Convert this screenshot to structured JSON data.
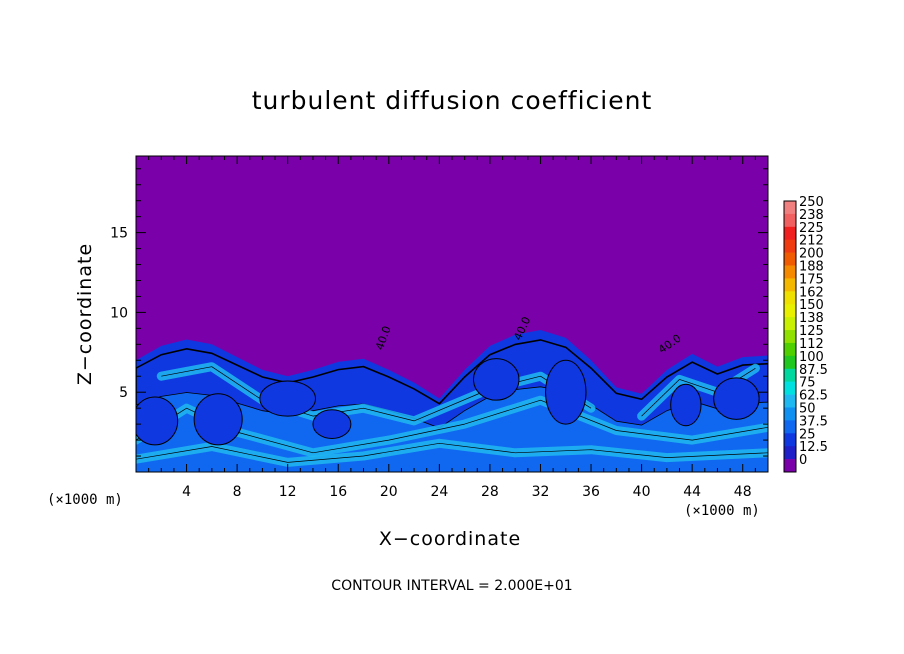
{
  "chart_data": {
    "type": "heatmap",
    "title": "turbulent diffusion coefficient",
    "xlabel": "X−coordinate",
    "ylabel": "Z−coordinate",
    "x_unit_label": "(×1000 m)",
    "x_ticks": [
      "4",
      "8",
      "12",
      "16",
      "20",
      "24",
      "28",
      "32",
      "36",
      "40",
      "44",
      "48"
    ],
    "x_tick_values": [
      4,
      8,
      12,
      16,
      20,
      24,
      28,
      32,
      36,
      40,
      44,
      48
    ],
    "xlim": [
      0,
      50
    ],
    "y_ticks": [
      "5",
      "10",
      "15"
    ],
    "y_tick_values": [
      5,
      10,
      15
    ],
    "ylim": [
      0,
      19.8
    ],
    "colorbar": {
      "labels": [
        "250",
        "238",
        "225",
        "212",
        "200",
        "188",
        "175",
        "162",
        "150",
        "138",
        "125",
        "112",
        "100",
        "87.5",
        "75",
        "62.5",
        "50",
        "37.5",
        "25",
        "12.5",
        "0"
      ],
      "colors": [
        "#f08080",
        "#f06060",
        "#f02020",
        "#f03a10",
        "#f05a00",
        "#f58a00",
        "#f5b800",
        "#f0e000",
        "#e8f000",
        "#c8f000",
        "#90e000",
        "#50d000",
        "#20c820",
        "#00d8a0",
        "#00e0e0",
        "#20b8f0",
        "#1090f0",
        "#1068f0",
        "#1038e0",
        "#2020c8",
        "#7a00aa"
      ]
    },
    "background_value": "0",
    "boundary_layer_profile": [
      [
        0,
        7.0
      ],
      [
        2,
        7.9
      ],
      [
        4,
        8.3
      ],
      [
        6,
        8.0
      ],
      [
        8,
        7.2
      ],
      [
        10,
        6.4
      ],
      [
        12,
        6.0
      ],
      [
        14,
        6.4
      ],
      [
        16,
        6.9
      ],
      [
        18,
        7.1
      ],
      [
        20,
        6.4
      ],
      [
        22,
        5.6
      ],
      [
        24,
        4.6
      ],
      [
        26,
        6.4
      ],
      [
        28,
        7.9
      ],
      [
        30,
        8.6
      ],
      [
        32,
        8.9
      ],
      [
        34,
        8.4
      ],
      [
        36,
        7.0
      ],
      [
        38,
        5.3
      ],
      [
        40,
        4.9
      ],
      [
        42,
        6.4
      ],
      [
        44,
        7.4
      ],
      [
        46,
        6.6
      ],
      [
        48,
        7.2
      ],
      [
        50,
        7.3
      ]
    ],
    "contour_labels": [
      "40.0",
      "40.0",
      "40.0"
    ]
  },
  "contour_note": "CONTOUR INTERVAL =  2.000E+01"
}
